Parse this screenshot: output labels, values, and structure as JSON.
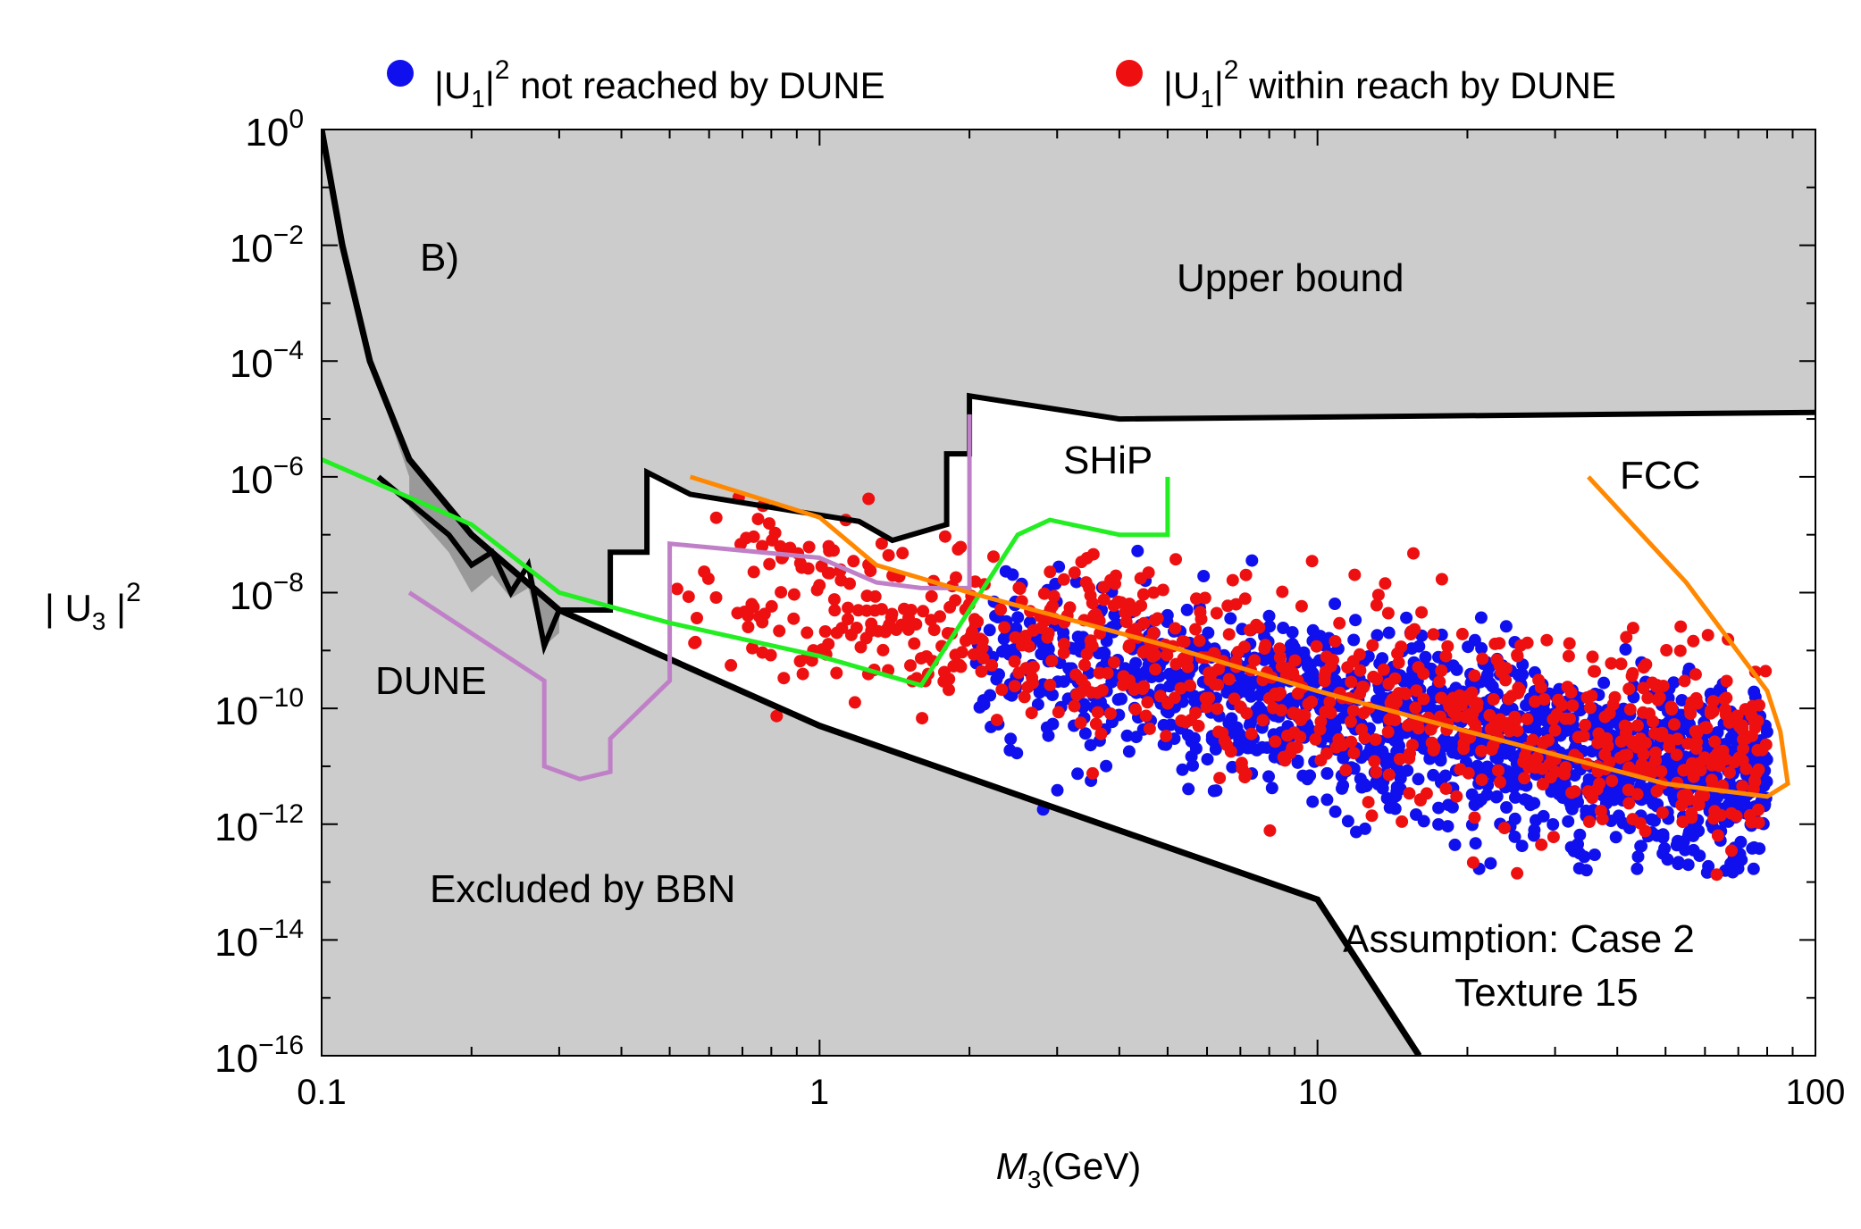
{
  "chart_data": {
    "type": "scatter",
    "panel_label": "B)",
    "xlabel": {
      "var": "M",
      "sub": "3",
      "unit": "(GeV)"
    },
    "ylabel": {
      "pre": "| U",
      "sub": "3",
      "post": " |",
      "sup": "2"
    },
    "xscale": "log",
    "yscale": "log",
    "xlim": [
      0.1,
      100
    ],
    "ylim": [
      1e-16,
      1
    ],
    "x_ticks": [
      {
        "value": 0.1,
        "label": "0.1"
      },
      {
        "value": 1,
        "label": "1"
      },
      {
        "value": 10,
        "label": "10"
      },
      {
        "value": 100,
        "label": "100"
      }
    ],
    "y_ticks": [
      {
        "value": 1,
        "base": "10",
        "exp": "0"
      },
      {
        "value": 0.01,
        "base": "10",
        "exp": "−2"
      },
      {
        "value": 0.0001,
        "base": "10",
        "exp": "−4"
      },
      {
        "value": 1e-06,
        "base": "10",
        "exp": "−6"
      },
      {
        "value": 1e-08,
        "base": "10",
        "exp": "−8"
      },
      {
        "value": 1e-10,
        "base": "10",
        "exp": "−10"
      },
      {
        "value": 1e-12,
        "base": "10",
        "exp": "−12"
      },
      {
        "value": 1e-14,
        "base": "10",
        "exp": "−14"
      },
      {
        "value": 1e-16,
        "base": "10",
        "exp": "−16"
      }
    ],
    "legend": {
      "placement": "top",
      "entries": [
        {
          "name": "not_reached",
          "color": "#1010ee",
          "pre": "|U",
          "sub": "1",
          "mid": "|",
          "sup": "2",
          "post": " not reached by DUNE"
        },
        {
          "name": "within_reach",
          "color": "#ee1010",
          "pre": "|U",
          "sub": "1",
          "mid": "|",
          "sup": "2",
          "post": " within reach by DUNE"
        }
      ]
    },
    "annotations": {
      "upper_bound": "Upper bound",
      "excluded_bbn": "Excluded by BBN",
      "ship": "SHiP",
      "fcc": "FCC",
      "dune": "DUNE",
      "assumption": "Assumption: Case 2",
      "texture": "Texture 15"
    },
    "colors": {
      "excluded_region": "#cccccc",
      "dark_region": "#999999",
      "bound_line": "#000000",
      "dune_curve": "#c080c8",
      "ship_curve": "#22ee22",
      "fcc_curve": "#ff8800"
    },
    "curves": {
      "upper_bound": [
        [
          0.13,
          1e-06
        ],
        [
          0.18,
          1e-07
        ],
        [
          0.2,
          3e-08
        ],
        [
          0.22,
          5e-08
        ],
        [
          0.24,
          1e-08
        ],
        [
          0.26,
          3e-08
        ],
        [
          0.28,
          1.2e-09
        ],
        [
          0.3,
          5e-09
        ],
        [
          0.38,
          5e-09
        ],
        [
          0.38,
          5e-08
        ],
        [
          0.45,
          5e-08
        ],
        [
          0.45,
          1.2e-06
        ],
        [
          0.55,
          5e-07
        ],
        [
          1.2,
          1.7e-07
        ],
        [
          1.4,
          8e-08
        ],
        [
          1.8,
          1.5e-07
        ],
        [
          1.8,
          2.5e-06
        ],
        [
          2,
          2.5e-06
        ],
        [
          2,
          2.5e-05
        ],
        [
          4,
          1e-05
        ],
        [
          100,
          1.3e-05
        ]
      ],
      "bbn_bound": [
        [
          0.1,
          1
        ],
        [
          0.11,
          0.01
        ],
        [
          0.125,
          0.0001
        ],
        [
          0.15,
          2e-06
        ],
        [
          0.2,
          1e-07
        ],
        [
          0.3,
          5e-09
        ],
        [
          1,
          5e-11
        ],
        [
          10,
          5e-14
        ],
        [
          16,
          1e-16
        ]
      ],
      "dark_band_lower": [
        [
          0.1,
          1
        ],
        [
          0.125,
          0.0001
        ],
        [
          0.15,
          1e-06
        ],
        [
          0.15,
          3e-07
        ],
        [
          0.18,
          5e-08
        ],
        [
          0.2,
          1e-08
        ],
        [
          0.22,
          2e-08
        ],
        [
          0.24,
          8e-09
        ],
        [
          0.26,
          1.2e-08
        ],
        [
          0.28,
          1.2e-09
        ],
        [
          0.3,
          2e-09
        ]
      ],
      "dune": [
        [
          0.15,
          1e-08
        ],
        [
          0.28,
          3e-10
        ],
        [
          0.28,
          1e-11
        ],
        [
          0.33,
          6e-12
        ],
        [
          0.38,
          8e-12
        ],
        [
          0.38,
          3e-11
        ],
        [
          0.5,
          3e-10
        ],
        [
          0.5,
          7e-08
        ],
        [
          1,
          4e-08
        ],
        [
          1.3,
          1.5e-08
        ],
        [
          1.6,
          1.2e-08
        ],
        [
          2,
          1.2e-08
        ],
        [
          2,
          1.2e-05
        ]
      ],
      "ship": [
        [
          0.1,
          2e-06
        ],
        [
          0.2,
          1.5e-07
        ],
        [
          0.3,
          1e-08
        ],
        [
          0.5,
          3e-09
        ],
        [
          1,
          8e-10
        ],
        [
          1.6,
          2.5e-10
        ],
        [
          2.5,
          1e-07
        ],
        [
          2.9,
          1.8e-07
        ],
        [
          4,
          1e-07
        ],
        [
          5,
          1e-07
        ],
        [
          5,
          1e-06
        ]
      ],
      "fcc": [
        [
          0.55,
          1e-06
        ],
        [
          1,
          2e-07
        ],
        [
          1.3,
          3e-08
        ],
        [
          2,
          1e-08
        ],
        [
          5,
          1.2e-09
        ],
        [
          10,
          2e-10
        ],
        [
          20,
          4e-11
        ],
        [
          50,
          5e-12
        ],
        [
          80,
          3e-12
        ],
        [
          88,
          5e-12
        ],
        [
          85,
          4e-11
        ],
        [
          80,
          2e-10
        ],
        [
          55,
          1.5e-08
        ],
        [
          35,
          1e-06
        ]
      ]
    },
    "series": [
      {
        "name": "not_reached",
        "color": "#1010ee",
        "count": 1500,
        "x_range": [
          2,
          80
        ],
        "center_log_u2_at_x1": -8.6,
        "slope": -1.45,
        "spread_dex": 0.75
      },
      {
        "name": "within_reach",
        "color": "#ee1010",
        "count": 850,
        "x_range": [
          0.5,
          80
        ],
        "center_log_u2_at_x1": -8.2,
        "slope": -1.5,
        "spread_dex": 0.85
      }
    ]
  }
}
